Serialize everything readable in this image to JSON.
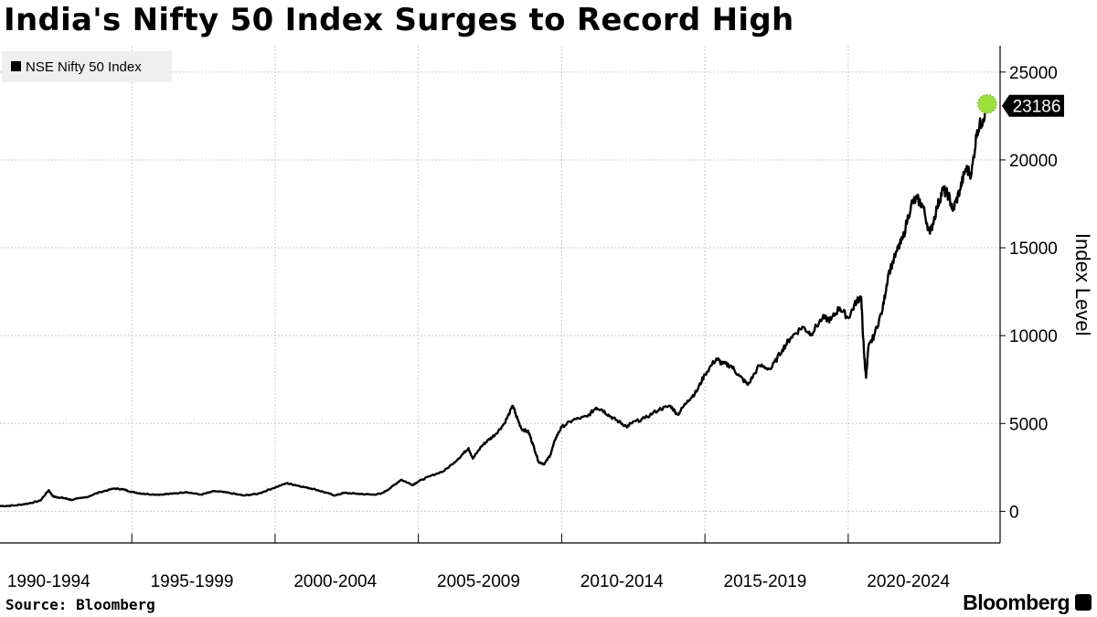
{
  "title": "India's Nifty 50 Index Surges to Record High",
  "source": "Source: Bloomberg",
  "brand": "Bloomberg",
  "colors": {
    "line": "#000000",
    "grid": "#c8c8c8",
    "marker": "#9be03c",
    "legend_bg": "#efefef"
  },
  "chart_data": {
    "type": "line",
    "title": "India's Nifty 50 Index Surges to Record High",
    "xlabel": "",
    "ylabel": "Index Level",
    "ylim": [
      -1800,
      26500
    ],
    "xlim": [
      1990.0,
      2024.9
    ],
    "yticks": [
      0,
      5000,
      10000,
      15000,
      20000,
      25000
    ],
    "ytick_labels": [
      "0",
      "5000",
      "10000",
      "15000",
      "20000",
      "25000"
    ],
    "xtick_labels": [
      "1990-1994",
      "1995-1999",
      "2000-2004",
      "2005-2009",
      "2010-2014",
      "2015-2019",
      "2020-2024"
    ],
    "xtick_centers": [
      1991.7,
      1996.7,
      2001.7,
      2006.7,
      2011.7,
      2016.7,
      2021.7
    ],
    "grid": true,
    "legend": {
      "position": "top-left",
      "entries": [
        "NSE Nifty 50 Index"
      ]
    },
    "last_value_label": "23186",
    "series": [
      {
        "name": "NSE Nifty 50 Index",
        "x": [
          1990.0,
          1990.5,
          1991.0,
          1991.4,
          1991.7,
          1991.85,
          1992.0,
          1992.25,
          1992.5,
          1993.0,
          1993.5,
          1994.0,
          1994.3,
          1994.6,
          1995.0,
          1995.5,
          1996.0,
          1996.5,
          1997.0,
          1997.5,
          1998.0,
          1998.5,
          1999.0,
          1999.5,
          2000.0,
          2000.3,
          2000.7,
          2001.0,
          2001.4,
          2001.7,
          2002.0,
          2002.5,
          2003.0,
          2003.3,
          2003.6,
          2004.0,
          2004.4,
          2004.6,
          2005.0,
          2005.5,
          2006.0,
          2006.35,
          2006.5,
          2006.8,
          2007.0,
          2007.3,
          2007.6,
          2007.9,
          2008.0,
          2008.2,
          2008.45,
          2008.6,
          2008.8,
          2009.0,
          2009.2,
          2009.4,
          2009.6,
          2010.0,
          2010.5,
          2010.8,
          2011.0,
          2011.3,
          2011.6,
          2011.9,
          2012.0,
          2012.5,
          2013.0,
          2013.4,
          2013.65,
          2014.0,
          2014.3,
          2014.6,
          2015.0,
          2015.2,
          2015.5,
          2015.8,
          2016.1,
          2016.5,
          2016.9,
          2017.3,
          2017.6,
          2018.0,
          2018.3,
          2018.7,
          2019.0,
          2019.3,
          2019.6,
          2019.9,
          2020.05,
          2020.15,
          2020.22,
          2020.3,
          2020.5,
          2020.8,
          2021.0,
          2021.3,
          2021.5,
          2021.8,
          2022.0,
          2022.2,
          2022.45,
          2022.7,
          2022.9,
          2023.1,
          2023.25,
          2023.5,
          2023.7,
          2023.9,
          2024.1,
          2024.3,
          2024.45
        ],
        "values": [
          300,
          330,
          450,
          600,
          1200,
          850,
          800,
          750,
          650,
          800,
          1100,
          1300,
          1250,
          1100,
          1000,
          950,
          1000,
          1100,
          950,
          1150,
          1050,
          900,
          1000,
          1300,
          1600,
          1500,
          1350,
          1250,
          1050,
          900,
          1050,
          1000,
          950,
          1000,
          1300,
          1800,
          1500,
          1700,
          2000,
          2300,
          3000,
          3600,
          3000,
          3700,
          4000,
          4400,
          5000,
          6000,
          5500,
          4700,
          4500,
          3800,
          2800,
          2700,
          3200,
          4200,
          4800,
          5200,
          5400,
          5900,
          5800,
          5400,
          5100,
          4800,
          5000,
          5300,
          5800,
          6000,
          5500,
          6300,
          6800,
          7800,
          8700,
          8400,
          8300,
          7700,
          7200,
          8300,
          8100,
          9200,
          9900,
          10500,
          10100,
          11000,
          10900,
          11600,
          11000,
          12000,
          12200,
          9000,
          7600,
          9300,
          10000,
          11500,
          13500,
          14800,
          15500,
          17500,
          17800,
          17400,
          15800,
          17300,
          18300,
          18000,
          17100,
          18300,
          19500,
          19200,
          21700,
          22300,
          23186
        ]
      }
    ]
  }
}
